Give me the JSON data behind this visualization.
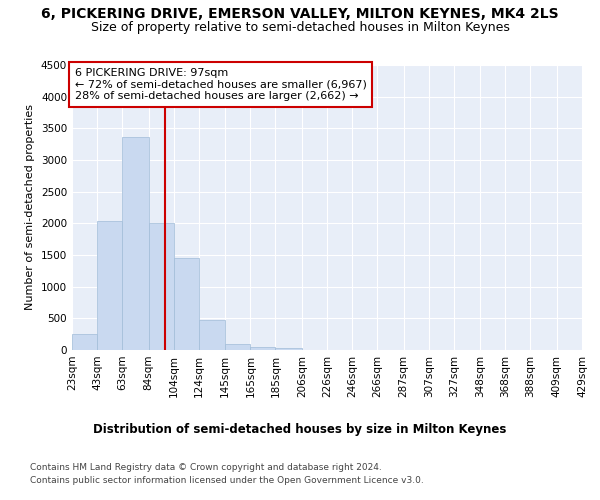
{
  "title": "6, PICKERING DRIVE, EMERSON VALLEY, MILTON KEYNES, MK4 2LS",
  "subtitle": "Size of property relative to semi-detached houses in Milton Keynes",
  "xlabel": "Distribution of semi-detached houses by size in Milton Keynes",
  "ylabel": "Number of semi-detached properties",
  "footer_line1": "Contains HM Land Registry data © Crown copyright and database right 2024.",
  "footer_line2": "Contains public sector information licensed under the Open Government Licence v3.0.",
  "annotation_title": "6 PICKERING DRIVE: 97sqm",
  "annotation_line1": "← 72% of semi-detached houses are smaller (6,967)",
  "annotation_line2": "28% of semi-detached houses are larger (2,662) →",
  "property_size": 97,
  "bar_color": "#c9d9f0",
  "bar_edge_color": "#a0bcd8",
  "vline_color": "#cc0000",
  "annotation_box_edge_color": "#cc0000",
  "background_color": "#e8eef8",
  "grid_color": "#ffffff",
  "bins": [
    23,
    43,
    63,
    84,
    104,
    124,
    145,
    165,
    185,
    206,
    226,
    246,
    266,
    287,
    307,
    327,
    348,
    368,
    388,
    409,
    429
  ],
  "counts": [
    250,
    2040,
    3370,
    2010,
    1460,
    480,
    95,
    55,
    30,
    0,
    0,
    0,
    0,
    0,
    0,
    0,
    0,
    0,
    0,
    0
  ],
  "ylim": [
    0,
    4500
  ],
  "yticks": [
    0,
    500,
    1000,
    1500,
    2000,
    2500,
    3000,
    3500,
    4000,
    4500
  ],
  "title_fontsize": 10,
  "subtitle_fontsize": 9,
  "xlabel_fontsize": 8.5,
  "ylabel_fontsize": 8,
  "tick_fontsize": 7.5,
  "annotation_fontsize": 8,
  "footer_fontsize": 6.5
}
